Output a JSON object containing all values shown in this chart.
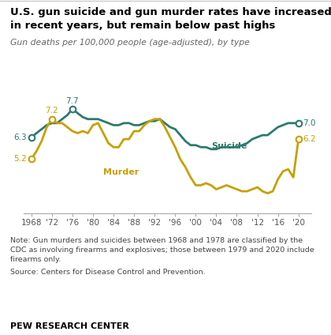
{
  "title_line1": "U.S. gun suicide and gun murder rates have increased",
  "title_line2": "in recent years, but remain below past highs",
  "subtitle": "Gun deaths per 100,000 people (age-adjusted), by type",
  "suicide_color": "#2d7a6e",
  "murder_color": "#c8a000",
  "background_color": "#ffffff",
  "note_line1": "Note: Gun murders and suicides between 1968 and 1978 are classified by the",
  "note_line2": "CDC as involving firearms and explosives; those between 1979 and 2020 include",
  "note_line3": "firearms only.",
  "note_line4": "Source: Centers for Disease Control and Prevention.",
  "footer_text": "PEW RESEARCH CENTER",
  "years": [
    1968,
    1969,
    1970,
    1971,
    1972,
    1973,
    1974,
    1975,
    1976,
    1977,
    1978,
    1979,
    1980,
    1981,
    1982,
    1983,
    1984,
    1985,
    1986,
    1987,
    1988,
    1989,
    1990,
    1991,
    1992,
    1993,
    1994,
    1995,
    1996,
    1997,
    1998,
    1999,
    2000,
    2001,
    2002,
    2003,
    2004,
    2005,
    2006,
    2007,
    2008,
    2009,
    2010,
    2011,
    2012,
    2013,
    2014,
    2015,
    2016,
    2017,
    2018,
    2019,
    2020
  ],
  "suicide": [
    6.3,
    6.5,
    6.7,
    6.9,
    7.0,
    7.0,
    7.2,
    7.4,
    7.7,
    7.5,
    7.3,
    7.2,
    7.2,
    7.2,
    7.1,
    7.0,
    6.9,
    6.9,
    7.0,
    7.0,
    6.9,
    6.9,
    7.0,
    7.1,
    7.1,
    7.2,
    7.0,
    6.8,
    6.7,
    6.4,
    6.1,
    5.9,
    5.9,
    5.8,
    5.8,
    5.7,
    5.7,
    5.8,
    5.8,
    5.8,
    5.8,
    5.9,
    6.0,
    6.2,
    6.3,
    6.4,
    6.4,
    6.6,
    6.8,
    6.9,
    7.0,
    7.0,
    7.0
  ],
  "murder": [
    5.2,
    5.6,
    6.1,
    6.8,
    7.2,
    7.0,
    7.0,
    6.8,
    6.6,
    6.5,
    6.6,
    6.5,
    6.9,
    7.0,
    6.5,
    6.0,
    5.8,
    5.8,
    6.2,
    6.2,
    6.6,
    6.6,
    6.9,
    7.1,
    7.2,
    7.2,
    6.8,
    6.3,
    5.8,
    5.2,
    4.8,
    4.3,
    3.9,
    3.9,
    4.0,
    3.9,
    3.7,
    3.8,
    3.9,
    3.8,
    3.7,
    3.6,
    3.6,
    3.7,
    3.8,
    3.6,
    3.5,
    3.6,
    4.2,
    4.6,
    4.7,
    4.3,
    6.2
  ],
  "xtick_years": [
    1968,
    1972,
    1976,
    1980,
    1984,
    1988,
    1992,
    1996,
    2000,
    2004,
    2008,
    2012,
    2016,
    2020
  ],
  "xtick_labels": [
    "1968",
    "'72",
    "'76",
    "'80",
    "'84",
    "'88",
    "'92",
    "'96",
    "'00",
    "'04",
    "'08",
    "'12",
    "'16",
    "'20"
  ],
  "ylim": [
    2.5,
    9.2
  ],
  "xlim": [
    1966.5,
    2022.5
  ]
}
